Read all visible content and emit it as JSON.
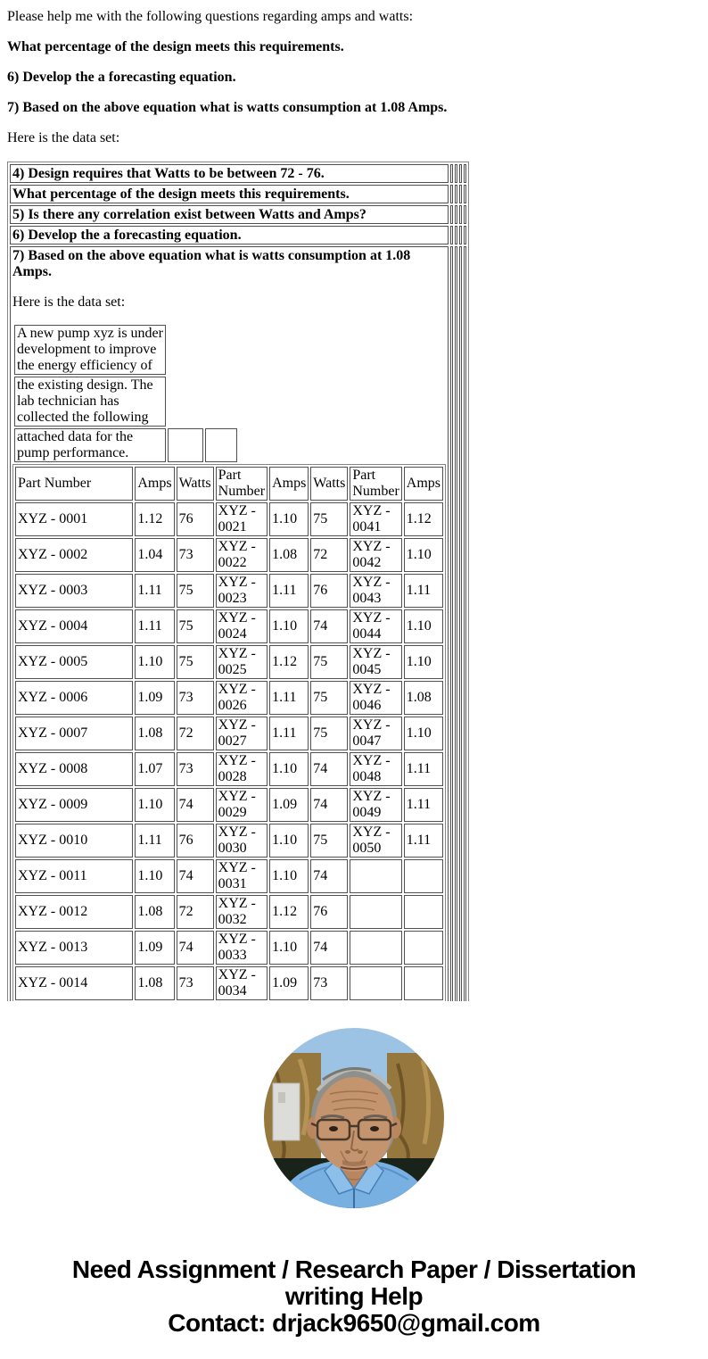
{
  "intro": {
    "p1": "Please help me with the following questions regarding amps and watts:",
    "p2": "What percentage of the design meets this requirements.",
    "p3": "6) Develop the a forecasting equation.",
    "p4": "7) Based on the above equation what is watts consumption at 1.08 Amps.",
    "p5": "Here is the data set:"
  },
  "questions": {
    "rows": [
      {
        "text": "4) Design requires that Watts to be between 72 - 76."
      },
      {
        "text": "What percentage of the design meets this requirements."
      },
      {
        "text": "5) Is there any correlation exist between Watts and Amps?"
      },
      {
        "text": "6) Develop the a forecasting equation."
      }
    ]
  },
  "detail": {
    "heading": "7) Based on the above equation what is watts consumption at 1.08 Amps.",
    "data_set_label": "Here is the data set:"
  },
  "pump_note": {
    "lines": [
      "A new pump xyz is under development to improve the energy efficiency of",
      "the existing design. The lab technician has collected the following",
      "attached data for the pump performance."
    ]
  },
  "data_table": {
    "headers": [
      "Part Number",
      "Amps",
      "Watts",
      "Part Number",
      "Amps",
      "Watts",
      "Part Number",
      "Amps"
    ],
    "rows": [
      [
        "XYZ - 0001",
        "1.12",
        "76",
        "XYZ - 0021",
        "1.10",
        "75",
        "XYZ - 0041",
        "1.12"
      ],
      [
        "XYZ - 0002",
        "1.04",
        "73",
        "XYZ - 0022",
        "1.08",
        "72",
        "XYZ - 0042",
        "1.10"
      ],
      [
        "XYZ - 0003",
        "1.11",
        "75",
        "XYZ - 0023",
        "1.11",
        "76",
        "XYZ - 0043",
        "1.11"
      ],
      [
        "XYZ - 0004",
        "1.11",
        "75",
        "XYZ - 0024",
        "1.10",
        "74",
        "XYZ - 0044",
        "1.10"
      ],
      [
        "XYZ - 0005",
        "1.10",
        "75",
        "XYZ - 0025",
        "1.12",
        "75",
        "XYZ - 0045",
        "1.10"
      ],
      [
        "XYZ - 0006",
        "1.09",
        "73",
        "XYZ - 0026",
        "1.11",
        "75",
        "XYZ - 0046",
        "1.08"
      ],
      [
        "XYZ - 0007",
        "1.08",
        "72",
        "XYZ - 0027",
        "1.11",
        "75",
        "XYZ - 0047",
        "1.10"
      ],
      [
        "XYZ - 0008",
        "1.07",
        "73",
        "XYZ - 0028",
        "1.10",
        "74",
        "XYZ - 0048",
        "1.11"
      ],
      [
        "XYZ - 0009",
        "1.10",
        "74",
        "XYZ - 0029",
        "1.09",
        "74",
        "XYZ - 0049",
        "1.11"
      ],
      [
        "XYZ - 0010",
        "1.11",
        "76",
        "XYZ - 0030",
        "1.10",
        "75",
        "XYZ - 0050",
        "1.11"
      ],
      [
        "XYZ - 0011",
        "1.10",
        "74",
        "XYZ - 0031",
        "1.10",
        "74",
        "",
        ""
      ],
      [
        "XYZ - 0012",
        "1.08",
        "72",
        "XYZ - 0032",
        "1.12",
        "76",
        "",
        ""
      ],
      [
        "XYZ - 0013",
        "1.09",
        "74",
        "XYZ - 0033",
        "1.10",
        "74",
        "",
        ""
      ],
      [
        "XYZ - 0014",
        "1.08",
        "73",
        "XYZ - 0034",
        "1.09",
        "73",
        "",
        ""
      ],
      [
        "",
        "",
        "",
        "",
        "",
        "",
        "",
        ""
      ]
    ]
  },
  "footer": {
    "heading_line1": "Need Assignment / Research Paper / Dissertation",
    "heading_line2": "writing Help",
    "contact": "Contact: drjack9650@gmail.com"
  },
  "avatar": {
    "description": "portrait photo of an elderly man with gray hair and glasses wearing a light blue shirt"
  },
  "colors": {
    "page_bg": "#ffffff",
    "text": "#000000",
    "cell_border": "#505050",
    "table_border": "#858585",
    "sky_blue": "#9cc3e4",
    "wall_gold": "#96773d",
    "shirt_blue": "#78b0e2",
    "skin": "#c3946d",
    "hair_gray": "#8f8f8b"
  }
}
